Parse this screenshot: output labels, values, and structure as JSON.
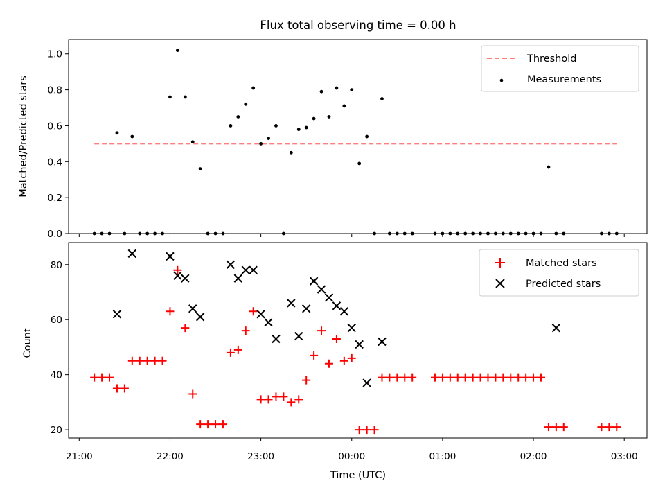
{
  "chart_data": [
    {
      "type": "scatter",
      "title": "Flux total observing time = 0.00 h",
      "xlabel": "",
      "ylabel": "Matched/Predicted stars",
      "xlim": [
        "20:53",
        "03:15"
      ],
      "ylim": [
        0,
        1.08
      ],
      "yticks": [
        0.0,
        0.2,
        0.4,
        0.6,
        0.8,
        1.0
      ],
      "ytick_labels": [
        "0.0",
        "0.2",
        "0.4",
        "0.6",
        "0.8",
        "1.0"
      ],
      "legend_position": "top-right",
      "grid": false,
      "threshold": {
        "name": "Threshold",
        "y": 0.5,
        "x_range": [
          "21:10",
          "02:55"
        ],
        "color": "#ff7f7f",
        "style": "dashed"
      },
      "series": [
        {
          "name": "Measurements",
          "color": "#000000",
          "marker": "dot",
          "x": [
            "21:10",
            "21:15",
            "21:20",
            "21:25",
            "21:30",
            "21:35",
            "21:40",
            "21:45",
            "21:50",
            "21:55",
            "22:00",
            "22:05",
            "22:10",
            "22:15",
            "22:20",
            "22:25",
            "22:30",
            "22:35",
            "22:40",
            "22:45",
            "22:50",
            "22:55",
            "23:00",
            "23:05",
            "23:10",
            "23:15",
            "23:20",
            "23:25",
            "23:30",
            "23:35",
            "23:40",
            "23:45",
            "23:50",
            "23:55",
            "00:00",
            "00:05",
            "00:10",
            "00:15",
            "00:20",
            "00:25",
            "00:30",
            "00:35",
            "00:40",
            "00:55",
            "01:00",
            "01:05",
            "01:10",
            "01:15",
            "01:20",
            "01:25",
            "01:30",
            "01:35",
            "01:40",
            "01:45",
            "01:50",
            "01:55",
            "02:00",
            "02:05",
            "02:10",
            "02:15",
            "02:20",
            "02:45",
            "02:50",
            "02:55"
          ],
          "y": [
            0.0,
            0.0,
            0.0,
            0.56,
            0.0,
            0.54,
            0.0,
            0.0,
            0.0,
            0.0,
            0.76,
            1.02,
            0.76,
            0.51,
            0.36,
            0.0,
            0.0,
            0.0,
            0.6,
            0.65,
            0.72,
            0.81,
            0.5,
            0.53,
            0.6,
            0.0,
            0.45,
            0.58,
            0.59,
            0.64,
            0.79,
            0.65,
            0.81,
            0.71,
            0.8,
            0.39,
            0.54,
            0.0,
            0.75,
            0.0,
            0.0,
            0.0,
            0.0,
            0.0,
            0.0,
            0.0,
            0.0,
            0.0,
            0.0,
            0.0,
            0.0,
            0.0,
            0.0,
            0.0,
            0.0,
            0.0,
            0.0,
            0.0,
            0.37,
            0.0,
            0.0,
            0.0,
            0.0,
            0.0
          ]
        }
      ]
    },
    {
      "type": "scatter",
      "title": "",
      "xlabel": "Time (UTC)",
      "ylabel": "Count",
      "xlim": [
        "20:53",
        "03:15"
      ],
      "ylim": [
        17,
        88
      ],
      "yticks": [
        20,
        40,
        60,
        80
      ],
      "ytick_labels": [
        "20",
        "40",
        "60",
        "80"
      ],
      "xticks": [
        "21:00",
        "22:00",
        "23:00",
        "00:00",
        "01:00",
        "02:00",
        "03:00"
      ],
      "legend_position": "top-right",
      "grid": false,
      "series": [
        {
          "name": "Matched stars",
          "color": "#ff0000",
          "marker": "plus",
          "x": [
            "21:10",
            "21:15",
            "21:20",
            "21:25",
            "21:30",
            "21:35",
            "21:40",
            "21:45",
            "21:50",
            "21:55",
            "22:00",
            "22:05",
            "22:10",
            "22:15",
            "22:20",
            "22:25",
            "22:30",
            "22:35",
            "22:40",
            "22:45",
            "22:50",
            "22:55",
            "23:00",
            "23:05",
            "23:10",
            "23:15",
            "23:20",
            "23:25",
            "23:30",
            "23:35",
            "23:40",
            "23:45",
            "23:50",
            "23:55",
            "00:00",
            "00:05",
            "00:10",
            "00:15",
            "00:20",
            "00:25",
            "00:30",
            "00:35",
            "00:40",
            "00:55",
            "01:00",
            "01:05",
            "01:10",
            "01:15",
            "01:20",
            "01:25",
            "01:30",
            "01:35",
            "01:40",
            "01:45",
            "01:50",
            "01:55",
            "02:00",
            "02:05",
            "02:10",
            "02:15",
            "02:20",
            "02:45",
            "02:50",
            "02:55"
          ],
          "y": [
            39,
            39,
            39,
            35,
            35,
            45,
            45,
            45,
            45,
            45,
            63,
            78,
            57,
            33,
            22,
            22,
            22,
            22,
            48,
            49,
            56,
            63,
            31,
            31,
            32,
            32,
            30,
            31,
            38,
            47,
            56,
            44,
            53,
            45,
            46,
            20,
            20,
            20,
            39,
            39,
            39,
            39,
            39,
            39,
            39,
            39,
            39,
            39,
            39,
            39,
            39,
            39,
            39,
            39,
            39,
            39,
            39,
            39,
            21,
            21,
            21,
            21,
            21,
            21
          ]
        },
        {
          "name": "Predicted stars",
          "color": "#000000",
          "marker": "x",
          "x": [
            "21:25",
            "21:35",
            "22:00",
            "22:05",
            "22:10",
            "22:15",
            "22:20",
            "22:40",
            "22:45",
            "22:50",
            "22:55",
            "23:00",
            "23:05",
            "23:10",
            "23:20",
            "23:25",
            "23:30",
            "23:35",
            "23:40",
            "23:45",
            "23:50",
            "23:55",
            "00:00",
            "00:05",
            "00:10",
            "00:20",
            "02:15"
          ],
          "y": [
            62,
            84,
            83,
            76,
            75,
            64,
            61,
            80,
            75,
            78,
            78,
            62,
            59,
            53,
            66,
            54,
            64,
            74,
            71,
            68,
            65,
            63,
            57,
            51,
            37,
            52,
            57
          ]
        }
      ]
    }
  ],
  "legend": {
    "top": [
      {
        "label": "Threshold"
      },
      {
        "label": "Measurements"
      }
    ],
    "bottom": [
      {
        "label": "Matched stars"
      },
      {
        "label": "Predicted stars"
      }
    ]
  }
}
